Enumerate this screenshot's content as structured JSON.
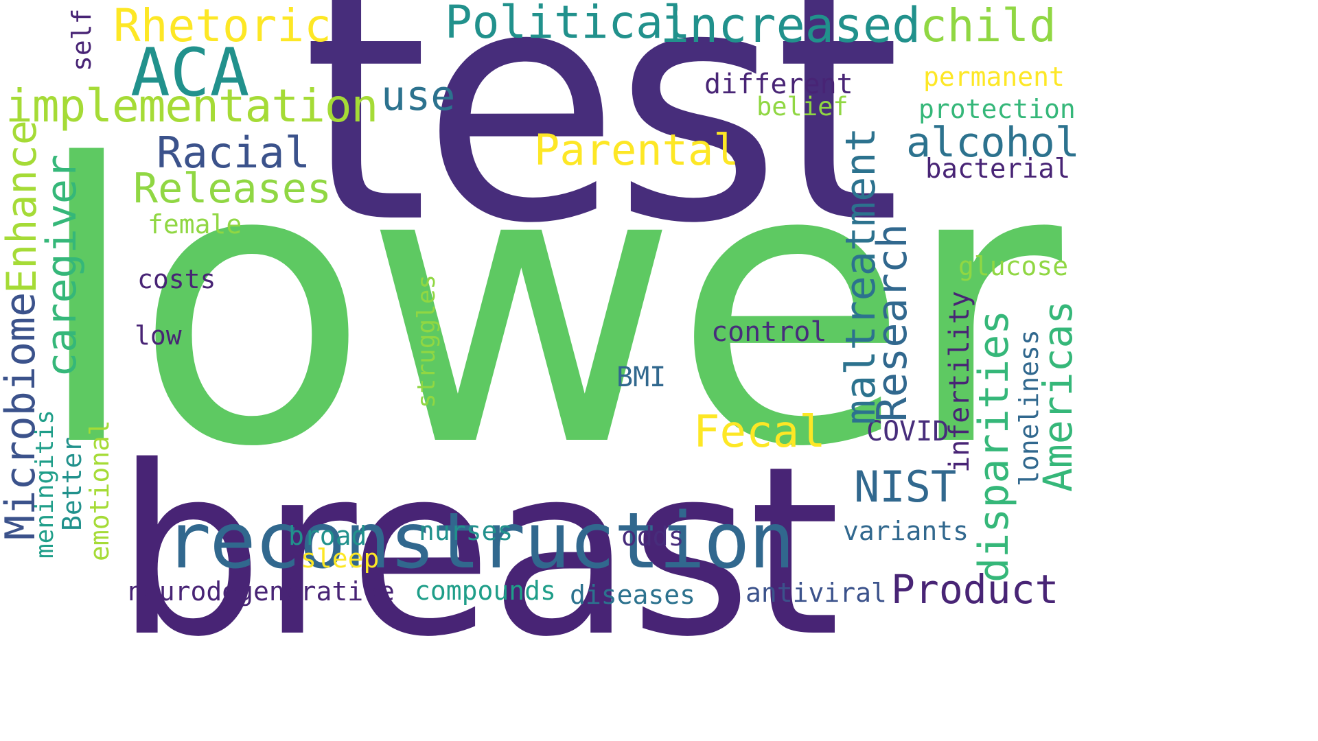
{
  "colors": {
    "background": "#ffffff",
    "dark_purple": "#472d7b",
    "deep_purple": "#482475",
    "indigo": "#3b528b",
    "blue": "#31688e",
    "teal_blue": "#2c728e",
    "teal": "#21918c",
    "sea_green": "#1f9e89",
    "green": "#35b779",
    "light_green": "#5ec962",
    "lime": "#90d743",
    "yellow_green": "#a5db36",
    "yellow": "#fde725"
  },
  "words": [
    {
      "text": "lower",
      "color": "light_green"
    },
    {
      "text": "test",
      "color": "dark_purple"
    },
    {
      "text": "breast",
      "color": "deep_purple"
    },
    {
      "text": "reconstruction",
      "color": "blue"
    },
    {
      "text": "ACA",
      "color": "teal"
    },
    {
      "text": "Rhetoric",
      "color": "yellow"
    },
    {
      "text": "Political",
      "color": "teal"
    },
    {
      "text": "increased",
      "color": "teal"
    },
    {
      "text": "child",
      "color": "lime"
    },
    {
      "text": "implementation",
      "color": "yellow_green"
    },
    {
      "text": "use",
      "color": "teal_blue"
    },
    {
      "text": "different",
      "color": "deep_purple"
    },
    {
      "text": "belief",
      "color": "lime"
    },
    {
      "text": "permanent",
      "color": "yellow"
    },
    {
      "text": "protection",
      "color": "green"
    },
    {
      "text": "alcohol",
      "color": "teal_blue"
    },
    {
      "text": "bacterial",
      "color": "deep_purple"
    },
    {
      "text": "Racial",
      "color": "indigo"
    },
    {
      "text": "Parental",
      "color": "yellow"
    },
    {
      "text": "Releases",
      "color": "lime"
    },
    {
      "text": "female",
      "color": "lime"
    },
    {
      "text": "costs",
      "color": "deep_purple"
    },
    {
      "text": "low",
      "color": "deep_purple"
    },
    {
      "text": "control",
      "color": "dark_purple"
    },
    {
      "text": "BMI",
      "color": "blue"
    },
    {
      "text": "glucose",
      "color": "lime"
    },
    {
      "text": "Fecal",
      "color": "yellow"
    },
    {
      "text": "COVID",
      "color": "dark_purple"
    },
    {
      "text": "NIST",
      "color": "blue"
    },
    {
      "text": "variants",
      "color": "blue"
    },
    {
      "text": "broad",
      "color": "teal"
    },
    {
      "text": "sleep",
      "color": "yellow"
    },
    {
      "text": "nurses",
      "color": "teal"
    },
    {
      "text": "odds",
      "color": "dark_purple"
    },
    {
      "text": "neurodegenerative",
      "color": "deep_purple"
    },
    {
      "text": "compounds",
      "color": "sea_green"
    },
    {
      "text": "diseases",
      "color": "teal_blue"
    },
    {
      "text": "antiviral",
      "color": "indigo"
    },
    {
      "text": "Product",
      "color": "deep_purple"
    },
    {
      "text": "self",
      "color": "deep_purple"
    },
    {
      "text": "Enhance",
      "color": "yellow_green"
    },
    {
      "text": "caregiver",
      "color": "green"
    },
    {
      "text": "Microbiome",
      "color": "indigo"
    },
    {
      "text": "meningitis",
      "color": "sea_green"
    },
    {
      "text": "Better",
      "color": "teal"
    },
    {
      "text": "emotional",
      "color": "yellow_green"
    },
    {
      "text": "struggles",
      "color": "lime"
    },
    {
      "text": "maltreatment",
      "color": "teal_blue"
    },
    {
      "text": "Research",
      "color": "blue"
    },
    {
      "text": "infertility",
      "color": "deep_purple"
    },
    {
      "text": "disparities",
      "color": "green"
    },
    {
      "text": "loneliness",
      "color": "blue"
    },
    {
      "text": "Americas",
      "color": "green"
    }
  ]
}
